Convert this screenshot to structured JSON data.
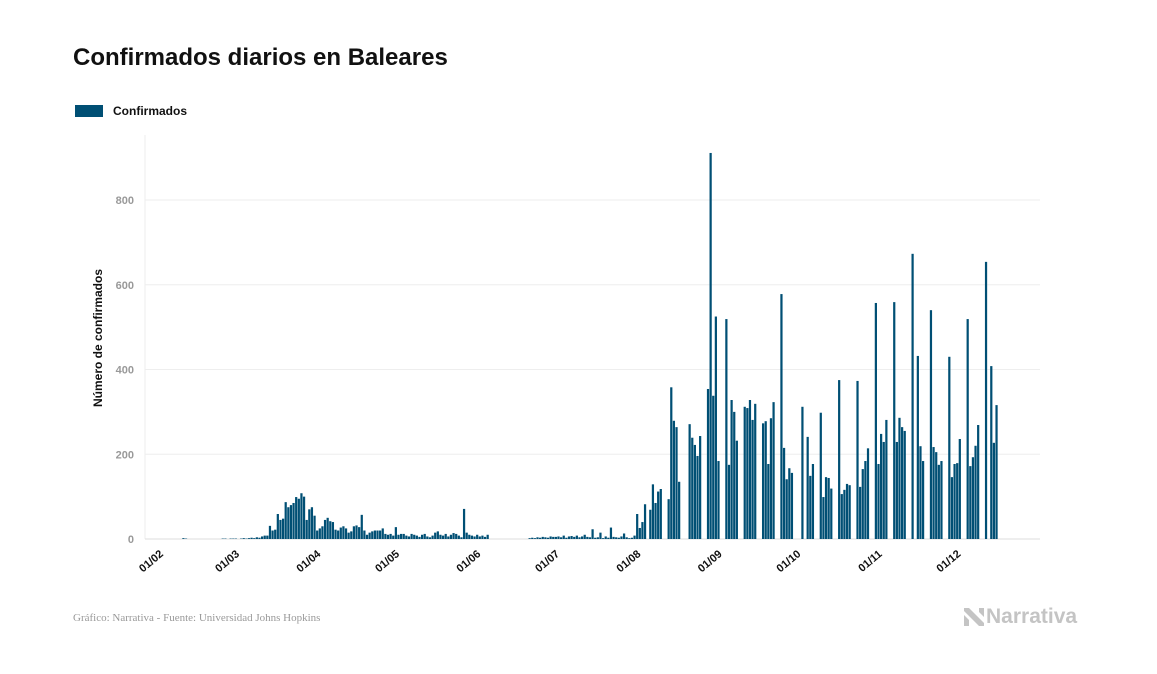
{
  "title": "Confirmados diarios en Baleares",
  "legend": {
    "label": "Confirmados",
    "color": "#004f74"
  },
  "footer": "Gráfico: Narrativa - Fuente: Universidad Johns Hopkins",
  "logo_text": "Narrativa",
  "chart_data": {
    "type": "bar",
    "title": "Confirmados diarios en Baleares",
    "xlabel": "",
    "ylabel": "Número de confirmados",
    "ylim": [
      0,
      950
    ],
    "yticks": [
      0,
      200,
      400,
      600,
      800
    ],
    "grid": true,
    "legend_position": "top-left",
    "bar_color": "#004f74",
    "xtick_labels": [
      "01/02",
      "01/03",
      "01/04",
      "01/05",
      "01/06",
      "01/07",
      "01/08",
      "01/09",
      "01/10",
      "01/11",
      "01/12"
    ],
    "series": [
      {
        "name": "Confirmados",
        "values_by_month": {
          "2020-02": [
            0,
            0,
            0,
            0,
            0,
            0,
            0,
            0,
            0,
            2,
            1,
            0,
            0,
            0,
            0,
            0,
            0,
            0,
            0,
            0,
            0,
            0,
            0,
            0,
            1,
            1,
            0,
            1,
            1
          ],
          "2020-03": [
            1,
            0,
            1,
            2,
            1,
            2,
            3,
            2,
            4,
            3,
            6,
            8,
            8,
            31,
            20,
            22,
            59,
            45,
            48,
            87,
            75,
            80,
            85,
            99,
            95,
            108,
            100,
            45,
            70,
            75,
            55
          ],
          "2020-04": [
            20,
            25,
            30,
            45,
            50,
            42,
            40,
            22,
            20,
            27,
            30,
            25,
            15,
            18,
            30,
            32,
            28,
            57,
            20,
            10,
            15,
            18,
            20,
            20,
            20,
            25,
            12,
            10,
            12,
            8
          ],
          "2020-05": [
            28,
            10,
            12,
            12,
            8,
            6,
            12,
            10,
            8,
            5,
            10,
            12,
            6,
            4,
            8,
            15,
            18,
            10,
            8,
            12,
            6,
            10,
            14,
            12,
            8,
            4,
            71,
            15,
            10,
            8,
            6
          ],
          "2020-06": [
            10,
            6,
            8,
            5,
            10,
            0,
            0,
            0,
            0,
            0,
            0,
            0,
            0,
            0,
            0,
            0,
            0,
            0,
            0,
            0,
            2,
            3,
            2,
            4,
            3,
            5,
            4,
            3,
            6,
            5
          ],
          "2020-07": [
            5,
            6,
            4,
            8,
            3,
            6,
            7,
            5,
            8,
            4,
            6,
            10,
            5,
            4,
            23,
            3,
            4,
            15,
            2,
            6,
            3,
            27,
            5,
            4,
            3,
            6,
            13,
            4,
            2,
            3,
            8
          ],
          "2020-08": [
            59,
            26,
            40,
            82,
            0,
            69,
            129,
            85,
            112,
            118,
            0,
            0,
            94,
            358,
            279,
            264,
            135,
            0,
            0,
            0,
            271,
            239,
            222,
            196,
            243,
            0,
            0,
            354,
            911,
            338,
            525
          ],
          "2020-09": [
            184,
            0,
            0,
            519,
            175,
            328,
            300,
            232,
            0,
            0,
            312,
            309,
            328,
            281,
            319,
            0,
            0,
            273,
            278,
            177,
            285,
            323,
            0,
            0,
            578,
            215,
            141,
            167,
            156,
            0
          ],
          "2020-10": [
            0,
            0,
            312,
            0,
            241,
            149,
            177,
            0,
            0,
            298,
            99,
            146,
            144,
            119,
            0,
            0,
            375,
            106,
            116,
            130,
            127,
            0,
            0,
            373,
            123,
            165,
            184,
            214,
            0,
            0,
            557
          ],
          "2020-11": [
            177,
            248,
            229,
            281,
            0,
            0,
            559,
            229,
            286,
            264,
            255,
            0,
            0,
            673,
            0,
            432,
            219,
            184,
            0,
            0,
            540,
            217,
            205,
            175,
            184,
            0,
            0,
            430,
            146,
            177
          ],
          "2020-12": [
            179,
            236,
            0,
            0,
            519,
            172,
            193,
            220,
            269,
            0,
            0,
            654,
            0,
            408,
            227,
            316
          ]
        }
      }
    ]
  }
}
